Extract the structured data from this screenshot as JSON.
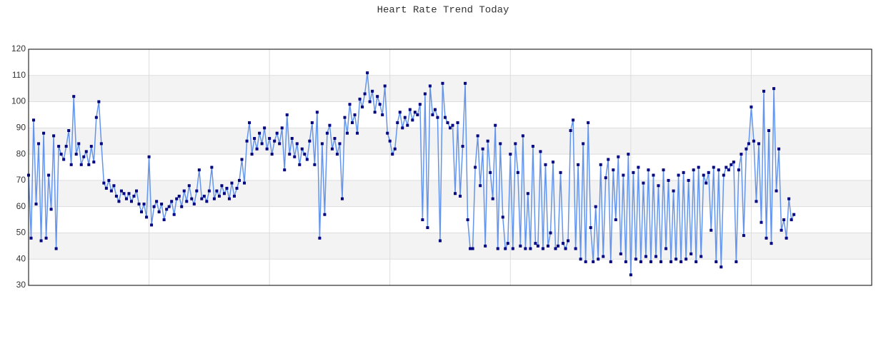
{
  "chart_data": {
    "type": "line",
    "title": "Heart Rate Trend Today",
    "xlim": [
      0,
      336
    ],
    "xticks": [
      48,
      96,
      144,
      192,
      240,
      288
    ],
    "ylim": [
      30,
      120
    ],
    "yticks": [
      30,
      40,
      50,
      60,
      70,
      80,
      90,
      100,
      110,
      120
    ],
    "grid": true,
    "bands": true,
    "series": [
      {
        "color": "#6495ed",
        "marker_color": "#000080",
        "values": [
          72,
          48,
          93,
          61,
          84,
          47,
          88,
          48,
          72,
          59,
          87,
          44,
          83,
          80,
          78,
          83,
          89,
          76,
          102,
          80,
          84,
          76,
          79,
          81,
          76,
          83,
          77,
          94,
          100,
          84,
          69,
          67,
          70,
          66,
          68,
          64,
          62,
          66,
          65,
          63,
          65,
          62,
          64,
          66,
          61,
          58,
          61,
          56,
          79,
          53,
          60,
          62,
          58,
          61,
          55,
          59,
          60,
          62,
          57,
          63,
          64,
          60,
          66,
          62,
          68,
          63,
          61,
          66,
          74,
          63,
          64,
          62,
          66,
          75,
          63,
          66,
          64,
          68,
          65,
          67,
          63,
          69,
          64,
          67,
          70,
          78,
          69,
          85,
          92,
          80,
          86,
          82,
          88,
          84,
          90,
          82,
          86,
          80,
          85,
          88,
          84,
          90,
          74,
          95,
          80,
          86,
          79,
          84,
          76,
          82,
          80,
          78,
          85,
          92,
          76,
          96,
          48,
          84,
          57,
          88,
          91,
          82,
          86,
          80,
          84,
          63,
          94,
          88,
          99,
          92,
          95,
          88,
          101,
          98,
          103,
          111,
          100,
          104,
          96,
          102,
          99,
          95,
          106,
          88,
          85,
          80,
          82,
          92,
          96,
          90,
          94,
          91,
          97,
          93,
          96,
          95,
          99,
          55,
          103,
          52,
          106,
          95,
          97,
          94,
          47,
          107,
          94,
          92,
          90,
          91,
          65,
          92,
          64,
          83,
          107,
          55,
          44,
          44,
          75,
          87,
          68,
          82,
          45,
          85,
          73,
          63,
          91,
          44,
          84,
          56,
          44,
          46,
          80,
          44,
          84,
          73,
          45,
          87,
          44,
          65,
          44,
          83,
          46,
          45,
          81,
          44,
          76,
          45,
          50,
          77,
          44,
          45,
          73,
          46,
          44,
          47,
          89,
          93,
          44,
          76,
          40,
          84,
          39,
          92,
          52,
          39,
          60,
          40,
          76,
          41,
          71,
          78,
          39,
          74,
          55,
          79,
          42,
          72,
          39,
          80,
          34,
          73,
          40,
          75,
          39,
          69,
          41,
          74,
          39,
          72,
          41,
          68,
          39,
          74,
          44,
          70,
          39,
          66,
          40,
          72,
          39,
          73,
          40,
          70,
          42,
          74,
          39,
          75,
          41,
          72,
          69,
          73,
          51,
          75,
          39,
          74,
          37,
          72,
          75,
          74,
          76,
          77,
          39,
          74,
          80,
          49,
          82,
          84,
          98,
          85,
          62,
          84,
          54,
          104,
          48,
          89,
          46,
          105,
          66,
          82,
          51,
          55,
          48,
          63,
          55,
          57
        ]
      }
    ]
  }
}
